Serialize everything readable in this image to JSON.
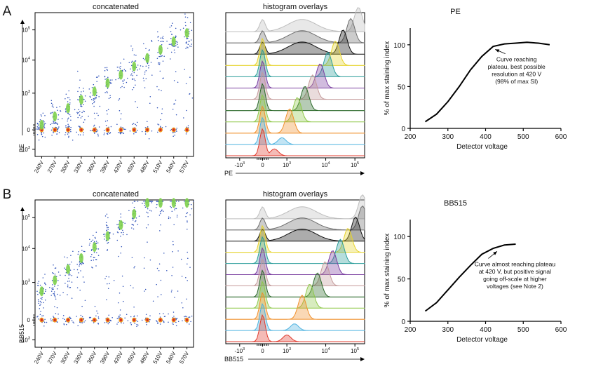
{
  "panels": [
    {
      "letter": "A",
      "marker": "PE",
      "scatter": {
        "title": "concatenated",
        "ylabel": "PE",
        "yticks": [
          "10^5",
          "10^4",
          "10^3",
          "0",
          "-10^3"
        ],
        "voltages": [
          "240V",
          "270V",
          "300V",
          "330V",
          "360V",
          "390V",
          "420V",
          "450V",
          "480V",
          "510V",
          "540V",
          "570V"
        ]
      },
      "hist": {
        "title": "histogram overlays",
        "xlabel": "PE",
        "xticks": [
          "-10^3",
          "0",
          "10^3",
          "10^4",
          "10^5"
        ]
      },
      "colors": [
        "#e03b2e",
        "#4fb3e0",
        "#f0902c",
        "#8fc84a",
        "#2d6a2b",
        "#c49a9a",
        "#7a3fa0",
        "#2a9d9a",
        "#e6d32b",
        "#111111",
        "#6d6d6d",
        "#bdbdbd"
      ]
    },
    {
      "letter": "B",
      "marker": "BB515",
      "scatter": {
        "title": "concatenated",
        "ylabel": "BB515",
        "yticks": [
          "10^5",
          "10^4",
          "10^3",
          "0",
          "-10^3"
        ],
        "voltages": [
          "240V",
          "270V",
          "300V",
          "330V",
          "360V",
          "390V",
          "420V",
          "450V",
          "480V",
          "510V",
          "540V",
          "570V"
        ]
      },
      "hist": {
        "title": "histogram overlays",
        "xlabel": "BB515",
        "xticks": [
          "-10^3",
          "0",
          "10^3",
          "10^4",
          "10^5"
        ]
      },
      "colors": [
        "#e03b2e",
        "#4fb3e0",
        "#f0902c",
        "#8fc84a",
        "#2d6a2b",
        "#c49a9a",
        "#7a3fa0",
        "#2a9d9a",
        "#e6d32b",
        "#111111",
        "#6d6d6d",
        "#bdbdbd"
      ]
    }
  ],
  "chart_data": [
    {
      "type": "line",
      "title": "PE",
      "xlabel": "Detector voltage",
      "ylabel": "% of max staining index",
      "xlim": [
        200,
        600
      ],
      "ylim": [
        0,
        120
      ],
      "xticks": [
        200,
        300,
        400,
        500,
        600
      ],
      "yticks": [
        0,
        50,
        100
      ],
      "x": [
        240,
        270,
        300,
        330,
        360,
        390,
        420,
        450,
        480,
        510,
        540,
        570
      ],
      "y": [
        8,
        17,
        32,
        50,
        70,
        86,
        98,
        101,
        102,
        103,
        102,
        100
      ],
      "annotation": "Curve reaching plateau, best possible resolution at 420 V (98% of max SI)"
    },
    {
      "type": "line",
      "title": "BB515",
      "xlabel": "Detector voltage",
      "ylabel": "% of max staining index",
      "xlim": [
        200,
        600
      ],
      "ylim": [
        0,
        120
      ],
      "xticks": [
        200,
        300,
        400,
        500,
        600
      ],
      "yticks": [
        0,
        50,
        100
      ],
      "x": [
        240,
        270,
        300,
        330,
        360,
        390,
        420,
        450,
        480
      ],
      "y": [
        12,
        22,
        37,
        52,
        66,
        79,
        86,
        90,
        91
      ],
      "annotation": "Curve almost reaching plateau at 420 V, but positive signal going off-scale at higher voltages (see Note 2)"
    }
  ]
}
